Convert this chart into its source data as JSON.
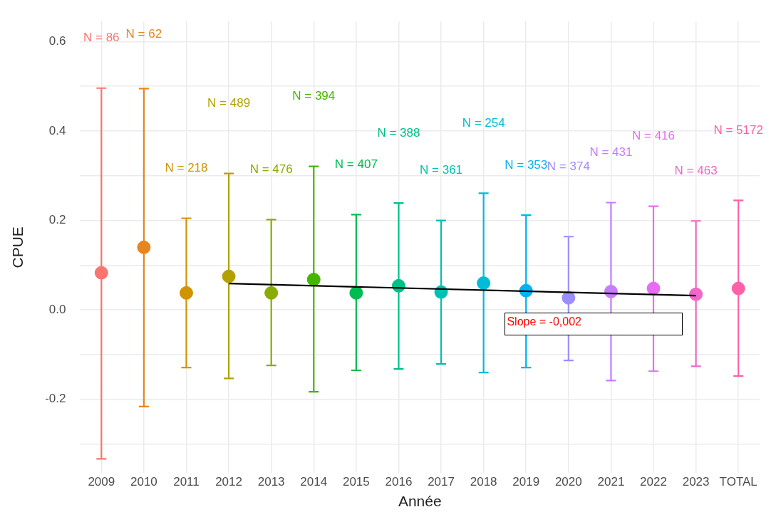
{
  "chart_data": {
    "type": "scatter",
    "xlabel": "Année",
    "ylabel": "CPUE",
    "categories": [
      "2009",
      "2010",
      "2011",
      "2012",
      "2013",
      "2014",
      "2015",
      "2016",
      "2017",
      "2018",
      "2019",
      "2020",
      "2021",
      "2022",
      "2023",
      "TOTAL"
    ],
    "series": [
      {
        "values": [
          0.083,
          0.14,
          0.038,
          0.075,
          0.038,
          0.068,
          0.038,
          0.054,
          0.04,
          0.06,
          0.043,
          0.027,
          0.041,
          0.048,
          0.035,
          0.048
        ],
        "colors": [
          "#f8766d",
          "#e7851e",
          "#d09400",
          "#b2a100",
          "#89ac00",
          "#45b500",
          "#00bc51",
          "#00c087",
          "#00c0b2",
          "#00bcd6",
          "#00b3f2",
          "#9c8dff",
          "#c77cff",
          "#e76bf3",
          "#f166c8",
          "#ff61a8"
        ],
        "errors": [
          [
            -0.333,
            0.496
          ],
          [
            -0.216,
            0.495
          ],
          [
            -0.129,
            0.205
          ],
          [
            -0.153,
            0.305
          ],
          [
            -0.124,
            0.202
          ],
          [
            -0.183,
            0.321
          ],
          [
            -0.135,
            0.213
          ],
          [
            -0.132,
            0.239
          ],
          [
            -0.121,
            0.2
          ],
          [
            -0.14,
            0.261
          ],
          [
            -0.129,
            0.212
          ],
          [
            -0.113,
            0.164
          ],
          [
            -0.158,
            0.24
          ],
          [
            -0.137,
            0.232
          ],
          [
            -0.126,
            0.199
          ],
          [
            -0.148,
            0.245
          ]
        ]
      },
      {
        "type": "line",
        "color": "#000000",
        "marker": "none",
        "values": [
          null,
          null,
          null,
          0.059,
          null,
          null,
          null,
          null,
          null,
          null,
          null,
          null,
          null,
          null,
          0.032,
          null
        ]
      }
    ],
    "ylim": [
      -0.365,
      0.645
    ],
    "yticks": [
      {
        "value": -0.3,
        "label": null
      },
      {
        "value": -0.2,
        "label": "-0.2"
      },
      {
        "value": -0.1,
        "label": null
      },
      {
        "value": 0,
        "label": "0.0"
      },
      {
        "value": 0.1,
        "label": null
      },
      {
        "value": 0.2,
        "label": "0.2"
      },
      {
        "value": 0.3,
        "label": null
      },
      {
        "value": 0.4,
        "label": "0.4"
      },
      {
        "value": 0.5,
        "label": null
      },
      {
        "value": 0.6,
        "label": "0.6"
      }
    ],
    "grid": true,
    "marker": "circle",
    "annotations": [
      "N = 86",
      "N = 62",
      "N = 218",
      "N = 489",
      "N = 476",
      "N = 394",
      "N = 407",
      "N = 388",
      "N = 361",
      "N = 254",
      "N = 353",
      "N = 374",
      "N = 431",
      "N = 416",
      "N = 463",
      "N = 5172",
      "Slope = -0,002"
    ]
  }
}
